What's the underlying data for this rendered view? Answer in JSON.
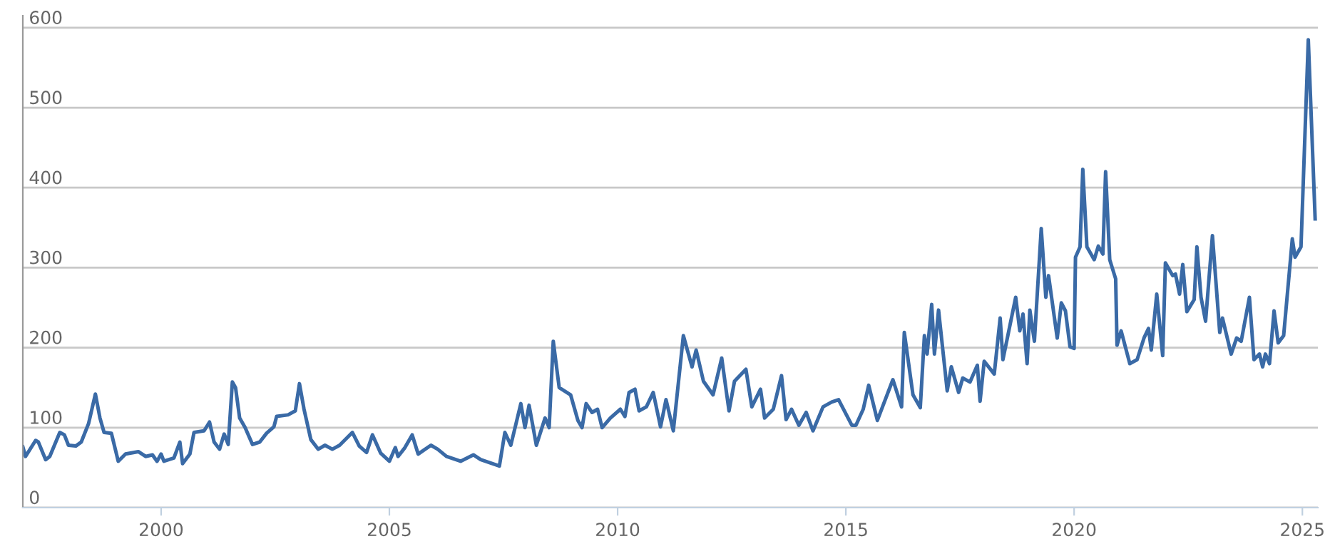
{
  "chart_data": {
    "type": "line",
    "x": [
      1996.97,
      1997.03,
      1997.25,
      1997.31,
      1997.47,
      1997.56,
      1997.78,
      1997.88,
      1997.97,
      1998.13,
      1998.25,
      1998.41,
      1998.56,
      1998.66,
      1998.75,
      1998.91,
      1999.06,
      1999.22,
      1999.5,
      1999.66,
      1999.81,
      1999.91,
      2000,
      2000.06,
      2000.28,
      2000.41,
      2000.47,
      2000.63,
      2000.72,
      2000.94,
      2001.06,
      2001.16,
      2001.28,
      2001.38,
      2001.47,
      2001.56,
      2001.63,
      2001.72,
      2001.84,
      2002,
      2002.16,
      2002.31,
      2002.47,
      2002.53,
      2002.78,
      2002.94,
      2003.03,
      2003.13,
      2003.28,
      2003.44,
      2003.59,
      2003.75,
      2003.91,
      2004.19,
      2004.34,
      2004.5,
      2004.63,
      2004.81,
      2005,
      2005.13,
      2005.19,
      2005.34,
      2005.5,
      2005.63,
      2005.91,
      2006.06,
      2006.25,
      2006.56,
      2006.84,
      2007,
      2007.41,
      2007.53,
      2007.66,
      2007.88,
      2007.97,
      2008.06,
      2008.22,
      2008.41,
      2008.5,
      2008.59,
      2008.72,
      2008.97,
      2009.13,
      2009.22,
      2009.31,
      2009.44,
      2009.56,
      2009.66,
      2009.84,
      2010.06,
      2010.16,
      2010.25,
      2010.38,
      2010.47,
      2010.63,
      2010.78,
      2010.94,
      2011.06,
      2011.22,
      2011.44,
      2011.63,
      2011.72,
      2011.88,
      2012.09,
      2012.28,
      2012.44,
      2012.56,
      2012.81,
      2012.94,
      2013.13,
      2013.22,
      2013.41,
      2013.59,
      2013.69,
      2013.81,
      2013.97,
      2014.13,
      2014.28,
      2014.5,
      2014.69,
      2014.84,
      2015.13,
      2015.22,
      2015.38,
      2015.5,
      2015.69,
      2015.91,
      2016.03,
      2016.22,
      2016.28,
      2016.47,
      2016.63,
      2016.72,
      2016.78,
      2016.88,
      2016.94,
      2017.03,
      2017.22,
      2017.31,
      2017.47,
      2017.56,
      2017.72,
      2017.88,
      2017.94,
      2018.03,
      2018.25,
      2018.38,
      2018.44,
      2018.72,
      2018.81,
      2018.88,
      2018.97,
      2019.03,
      2019.13,
      2019.28,
      2019.38,
      2019.44,
      2019.63,
      2019.72,
      2019.81,
      2019.91,
      2020,
      2020.03,
      2020.13,
      2020.19,
      2020.28,
      2020.44,
      2020.53,
      2020.63,
      2020.69,
      2020.78,
      2020.91,
      2020.94,
      2021.03,
      2021.22,
      2021.38,
      2021.53,
      2021.63,
      2021.69,
      2021.81,
      2021.94,
      2022,
      2022.16,
      2022.22,
      2022.31,
      2022.38,
      2022.47,
      2022.63,
      2022.69,
      2022.78,
      2022.88,
      2023.03,
      2023.19,
      2023.25,
      2023.44,
      2023.56,
      2023.66,
      2023.84,
      2023.94,
      2024.06,
      2024.13,
      2024.19,
      2024.28,
      2024.38,
      2024.47,
      2024.59,
      2024.78,
      2024.84,
      2024.97,
      2025.13,
      2025.28
    ],
    "series": [
      {
        "color": "#3a6aa6",
        "values": [
          76,
          64,
          84,
          82,
          60,
          64,
          94,
          91,
          78,
          77,
          82,
          105,
          142,
          112,
          94,
          93,
          58,
          67,
          70,
          64,
          66,
          58,
          67,
          58,
          62,
          82,
          55,
          67,
          94,
          96,
          107,
          82,
          73,
          92,
          79,
          157,
          150,
          112,
          100,
          79,
          82,
          93,
          101,
          114,
          116,
          121,
          155,
          123,
          85,
          73,
          78,
          73,
          78,
          94,
          77,
          69,
          91,
          68,
          58,
          75,
          64,
          75,
          91,
          67,
          78,
          73,
          64,
          58,
          66,
          60,
          52,
          94,
          78,
          130,
          100,
          128,
          78,
          112,
          100,
          208,
          150,
          141,
          109,
          100,
          130,
          119,
          123,
          100,
          112,
          123,
          114,
          144,
          148,
          121,
          126,
          144,
          101,
          135,
          96,
          215,
          176,
          197,
          158,
          141,
          187,
          121,
          158,
          173,
          126,
          148,
          112,
          123,
          165,
          110,
          123,
          103,
          119,
          96,
          126,
          132,
          135,
          103,
          103,
          123,
          153,
          109,
          142,
          160,
          126,
          219,
          141,
          125,
          215,
          192,
          254,
          192,
          247,
          146,
          176,
          144,
          162,
          157,
          178,
          133,
          183,
          167,
          237,
          185,
          263,
          221,
          242,
          180,
          247,
          208,
          349,
          263,
          290,
          212,
          256,
          246,
          201,
          199,
          313,
          326,
          423,
          326,
          310,
          327,
          317,
          420,
          310,
          286,
          203,
          221,
          180,
          185,
          212,
          224,
          197,
          267,
          190,
          306,
          290,
          292,
          267,
          304,
          245,
          260,
          326,
          263,
          233,
          340,
          219,
          237,
          192,
          212,
          208,
          263,
          185,
          192,
          176,
          192,
          180,
          246,
          206,
          215,
          336,
          313,
          326,
          585,
          361
        ]
      }
    ],
    "xlim": [
      1996.97,
      2025.34
    ],
    "xticks": [
      2000,
      2005,
      2010,
      2015,
      2020,
      2025
    ],
    "ylim": [
      0,
      615
    ],
    "yticks": [
      0,
      100,
      200,
      300,
      400,
      500,
      600
    ],
    "grid": "y",
    "marker": "none",
    "line_style": "solid"
  }
}
